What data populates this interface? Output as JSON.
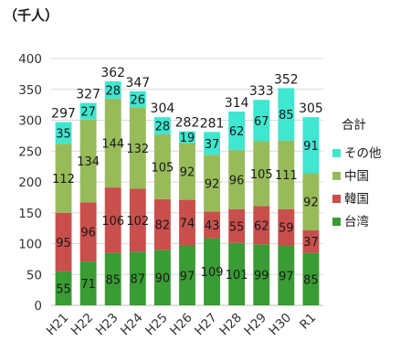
{
  "unit_label": "（千人）",
  "chart_data": {
    "type": "bar",
    "stacked": true,
    "categories": [
      "H21",
      "H22",
      "H23",
      "H24",
      "H25",
      "H26",
      "H27",
      "H28",
      "H29",
      "H30",
      "R1"
    ],
    "series": [
      {
        "name": "台湾",
        "color": "#3a9c34",
        "values": [
          55,
          71,
          85,
          87,
          90,
          97,
          109,
          101,
          99,
          97,
          85
        ]
      },
      {
        "name": "韓国",
        "color": "#c94f4c",
        "values": [
          95,
          96,
          106,
          102,
          82,
          74,
          43,
          55,
          62,
          59,
          37
        ]
      },
      {
        "name": "中国",
        "color": "#98bb5a",
        "values": [
          112,
          134,
          144,
          132,
          105,
          92,
          92,
          96,
          105,
          111,
          92
        ]
      },
      {
        "name": "その他",
        "color": "#3fe6d0",
        "values": [
          35,
          27,
          28,
          26,
          28,
          19,
          37,
          62,
          67,
          85,
          91
        ]
      }
    ],
    "totals": [
      297,
      327,
      362,
      347,
      304,
      282,
      281,
      314,
      333,
      352,
      305
    ],
    "ylim": [
      0,
      400
    ],
    "yticks": [
      0,
      50,
      100,
      150,
      200,
      250,
      300,
      350,
      400
    ],
    "grid": true,
    "legend_title": "合計",
    "legend_position": "right"
  }
}
